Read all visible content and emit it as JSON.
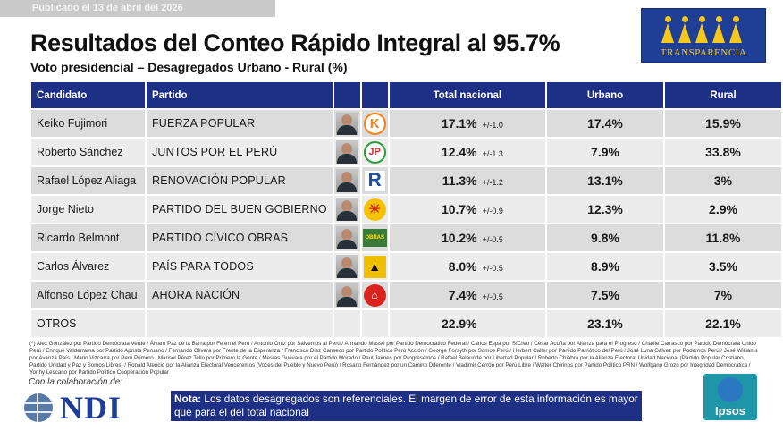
{
  "header": {
    "published": "Publicado el 13 de abril del 2026",
    "title": "Resultados del Conteo Rápido Integral al 95.7%",
    "subtitle": "Voto presidencial – Desagregados Urbano - Rural (%)",
    "logo_text": "TRANSPARENCIA"
  },
  "colors": {
    "header_bg": "#1e2f86",
    "row_dark": "#dcdcdc",
    "row_light": "#ececec",
    "logo_bg": "#1f3f96",
    "logo_figures": "#f6c81b"
  },
  "chart_data": {
    "type": "table",
    "columns": [
      "Candidato",
      "Partido",
      "",
      "",
      "Total nacional",
      "Urbano",
      "Rural"
    ],
    "rows": [
      {
        "candidate": "Keiko Fujimori",
        "party": "FUERZA POPULAR",
        "total": "17.1%",
        "margin": "+/-1.0",
        "urban": "17.4%",
        "rural": "15.9%",
        "logo_icon": "fuerza-popular-k-logo",
        "logo_glyph": "K"
      },
      {
        "candidate": "Roberto Sánchez",
        "party": "JUNTOS POR EL PERÚ",
        "total": "12.4%",
        "margin": "+/-1.3",
        "urban": "7.9%",
        "rural": "33.8%",
        "logo_icon": "juntos-por-el-peru-jp-logo",
        "logo_glyph": "JP"
      },
      {
        "candidate": "Rafael López Aliaga",
        "party": "RENOVACIÓN POPULAR",
        "total": "11.3%",
        "margin": "+/-1.2",
        "urban": "13.1%",
        "rural": "3%",
        "logo_icon": "renovacion-popular-r-logo",
        "logo_glyph": "R"
      },
      {
        "candidate": "Jorge Nieto",
        "party": "PARTIDO DEL BUEN GOBIERNO",
        "total": "10.7%",
        "margin": "+/-0.9",
        "urban": "12.3%",
        "rural": "2.9%",
        "logo_icon": "buen-gobierno-sun-logo",
        "logo_glyph": "☀"
      },
      {
        "candidate": "Ricardo Belmont",
        "party": "PARTIDO CÍVICO OBRAS",
        "total": "10.2%",
        "margin": "+/-0.5",
        "urban": "9.8%",
        "rural": "11.8%",
        "logo_icon": "obras-logo",
        "logo_glyph": "OBRAS"
      },
      {
        "candidate": "Carlos Álvarez",
        "party": "PAÍS PARA TODOS",
        "total": "8.0%",
        "margin": "+/-0.5",
        "urban": "8.9%",
        "rural": "3.5%",
        "logo_icon": "pais-para-todos-logo",
        "logo_glyph": "▲"
      },
      {
        "candidate": "Alfonso López Chau",
        "party": "AHORA NACIÓN",
        "total": "7.4%",
        "margin": "+/-0.5",
        "urban": "7.5%",
        "rural": "7%",
        "logo_icon": "ahora-nacion-logo",
        "logo_glyph": "⌂"
      },
      {
        "candidate": "OTROS",
        "party": "",
        "total": "22.9%",
        "margin": "",
        "urban": "23.1%",
        "rural": "22.1%"
      }
    ]
  },
  "footnote": "(*) Alex González por Partido Demócrata Verde / Álvaro Paz de la Barra por Fe en el Perú / Antonio Ortiz por Salvemos al Perú / Armando Massé por Partido Democrático Federal / Carlos Espá por SíCreo / César Acuña por Alianza para el Progreso / Charlie Carrasco por Partido Demócrata Unido Perú / Enrique Valderrama por Partido Aprista Peruano / Fernando Olivera por Frente de la Esperanza / Francisco Diez Canseco por Partido Político Perú Acción / George Forsyth por Somos Perú / Herbert Caller por Partido Patriótico del Perú / José Luna Gálvez por Podemos Perú / José Williams por Avanza País / Mario Vizcarra por Perú Primero / Marisol Pérez Tello por Primero la Gente / Mesías Guevara por el Partido Morado / Paul Jaimes por Progresemos / Rafael Belaunde por Libertad Popular / Roberto Chiabra por la Alianza Electoral Unidad Nacional (Partido Popular Cristiano, Partido Unidad y Paz y Somos Libres) / Ronald Atencio por la Alianza Electoral Venceremos (Voces del Pueblo y Nuevo Perú) / Rosario Fernández por un Camino Diferente / Vladimir Cerrón por Perú Libre / Walter Chirinos por Partido Político PRN / Wolfgang Grozo por Integridad Democrática / Yonhy Lescano por Partido Político Cooperación Popular",
  "footer": {
    "collab": "Con la colaboración de:",
    "ndi_logo": "NDI",
    "note_label": "Nota:",
    "note_text": " Los datos desagregados son referenciales. El margen de error de esta información es mayor que para el del total nacional",
    "ipsos_logo": "Ipsos"
  }
}
